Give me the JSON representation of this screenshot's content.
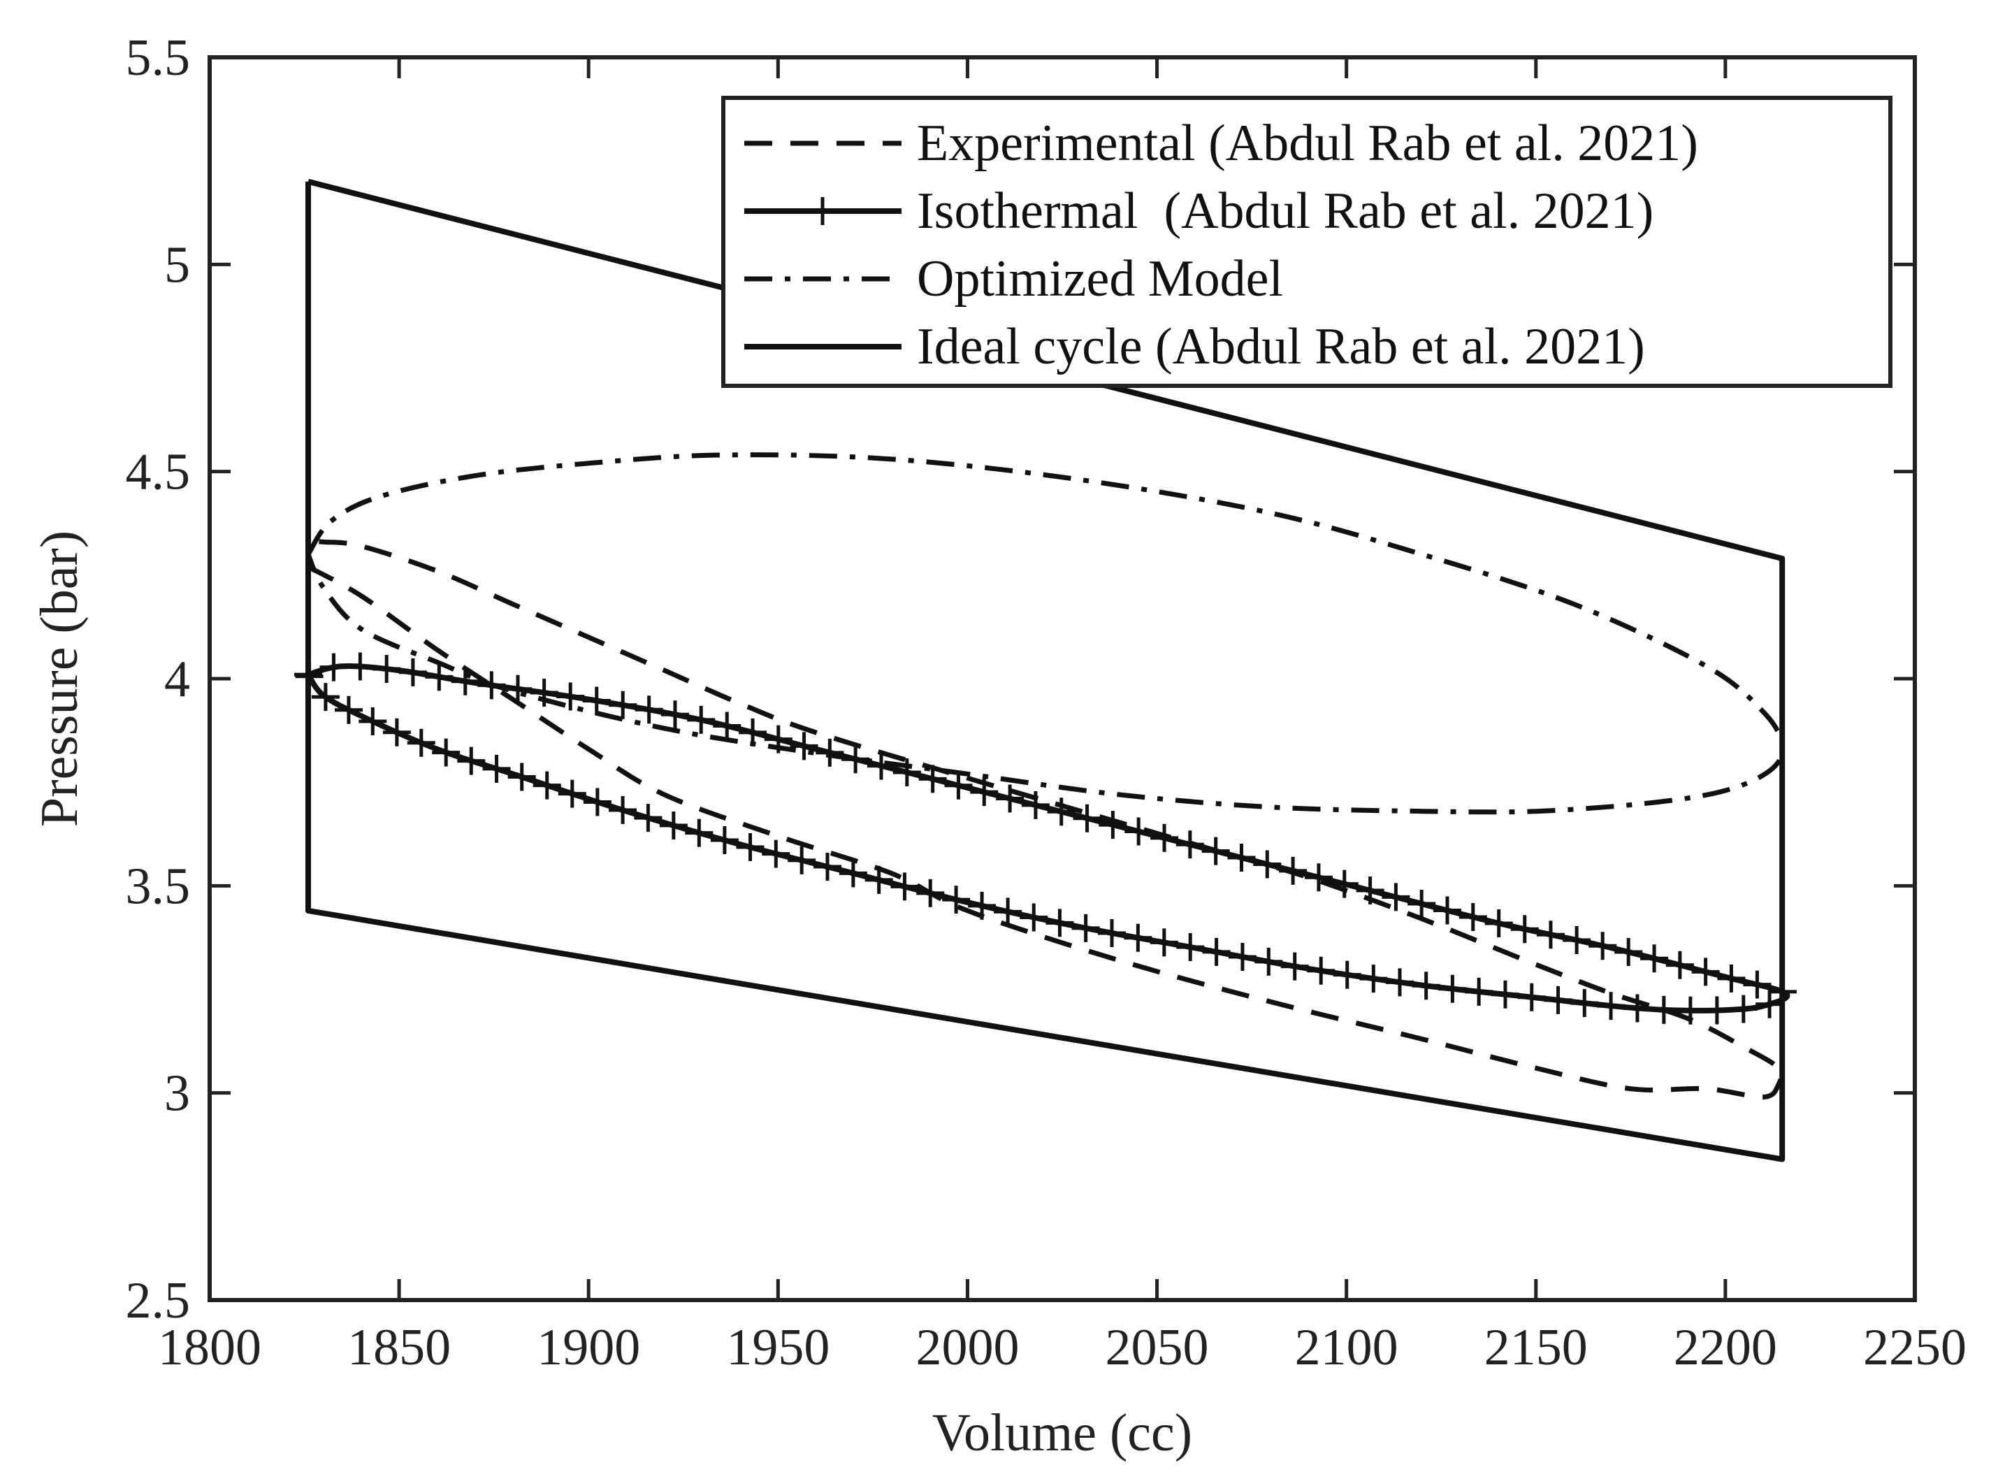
{
  "chart_data": {
    "type": "line",
    "title": "",
    "xlabel": "Volume (cc)",
    "ylabel": "Pressure (bar)",
    "xlim": [
      1800,
      2250
    ],
    "ylim": [
      2.5,
      5.5
    ],
    "xticks": [
      1800,
      1850,
      1900,
      1950,
      2000,
      2050,
      2100,
      2150,
      2200,
      2250
    ],
    "yticks": [
      2.5,
      3,
      3.5,
      4,
      4.5,
      5,
      5.5
    ],
    "xtick_labels": [
      "1800",
      "1850",
      "1900",
      "1950",
      "2000",
      "2050",
      "2100",
      "2150",
      "2200",
      "2250"
    ],
    "ytick_labels": [
      "2.5",
      "3",
      "3.5",
      "4",
      "4.5",
      "5",
      "5.5"
    ],
    "grid": false,
    "legend_position": "top-right",
    "series": [
      {
        "name": "Experimental (Abdul Rab et al. 2021)",
        "style": "dashed",
        "points": [
          [
            1826,
            4.27
          ],
          [
            1840,
            4.2
          ],
          [
            1860,
            4.07
          ],
          [
            1880,
            3.95
          ],
          [
            1900,
            3.83
          ],
          [
            1920,
            3.72
          ],
          [
            1950,
            3.62
          ],
          [
            1980,
            3.53
          ],
          [
            2000,
            3.44
          ],
          [
            2040,
            3.32
          ],
          [
            2080,
            3.22
          ],
          [
            2120,
            3.13
          ],
          [
            2150,
            3.06
          ],
          [
            2175,
            3.01
          ],
          [
            2195,
            3.01
          ],
          [
            2210,
            2.99
          ],
          [
            2214,
            3.02
          ],
          [
            2214,
            3.06
          ],
          [
            2205,
            3.11
          ],
          [
            2190,
            3.18
          ],
          [
            2170,
            3.24
          ],
          [
            2150,
            3.31
          ],
          [
            2120,
            3.42
          ],
          [
            2090,
            3.52
          ],
          [
            2060,
            3.6
          ],
          [
            2030,
            3.68
          ],
          [
            2000,
            3.76
          ],
          [
            1960,
            3.87
          ],
          [
            1940,
            3.94
          ],
          [
            1920,
            4.02
          ],
          [
            1900,
            4.1
          ],
          [
            1880,
            4.18
          ],
          [
            1860,
            4.26
          ],
          [
            1840,
            4.32
          ],
          [
            1830,
            4.33
          ],
          [
            1826,
            4.33
          ]
        ]
      },
      {
        "name": "Isothermal  (Abdul Rab et al. 2021)",
        "style": "solid-markers",
        "points": [
          [
            1826,
            4.01
          ],
          [
            1835,
            4.03
          ],
          [
            1850,
            4.02
          ],
          [
            1870,
            3.99
          ],
          [
            1900,
            3.95
          ],
          [
            1930,
            3.9
          ],
          [
            1960,
            3.83
          ],
          [
            1990,
            3.76
          ],
          [
            2020,
            3.69
          ],
          [
            2050,
            3.62
          ],
          [
            2080,
            3.55
          ],
          [
            2110,
            3.48
          ],
          [
            2140,
            3.41
          ],
          [
            2170,
            3.35
          ],
          [
            2200,
            3.28
          ],
          [
            2216,
            3.24
          ],
          [
            2210,
            3.21
          ],
          [
            2200,
            3.2
          ],
          [
            2185,
            3.2
          ],
          [
            2170,
            3.21
          ],
          [
            2150,
            3.23
          ],
          [
            2120,
            3.26
          ],
          [
            2090,
            3.3
          ],
          [
            2060,
            3.35
          ],
          [
            2030,
            3.4
          ],
          [
            2000,
            3.46
          ],
          [
            1970,
            3.53
          ],
          [
            1940,
            3.6
          ],
          [
            1910,
            3.68
          ],
          [
            1880,
            3.77
          ],
          [
            1860,
            3.83
          ],
          [
            1840,
            3.91
          ],
          [
            1830,
            3.96
          ],
          [
            1826,
            4.01
          ]
        ]
      },
      {
        "name": "Optimized Model",
        "style": "dash-dot",
        "points": [
          [
            1826,
            4.3
          ],
          [
            1832,
            4.38
          ],
          [
            1845,
            4.44
          ],
          [
            1870,
            4.49
          ],
          [
            1900,
            4.52
          ],
          [
            1935,
            4.54
          ],
          [
            1980,
            4.53
          ],
          [
            2030,
            4.48
          ],
          [
            2080,
            4.4
          ],
          [
            2120,
            4.3
          ],
          [
            2160,
            4.18
          ],
          [
            2195,
            4.03
          ],
          [
            2210,
            3.92
          ],
          [
            2215,
            3.84
          ],
          [
            2212,
            3.78
          ],
          [
            2200,
            3.73
          ],
          [
            2180,
            3.7
          ],
          [
            2150,
            3.68
          ],
          [
            2120,
            3.68
          ],
          [
            2080,
            3.69
          ],
          [
            2040,
            3.72
          ],
          [
            2000,
            3.77
          ],
          [
            1960,
            3.82
          ],
          [
            1920,
            3.88
          ],
          [
            1880,
            3.97
          ],
          [
            1860,
            4.04
          ],
          [
            1840,
            4.12
          ],
          [
            1830,
            4.22
          ],
          [
            1826,
            4.3
          ]
        ]
      },
      {
        "name": "Ideal cycle (Abdul Rab et al. 2021)",
        "style": "solid",
        "points": [
          [
            1826,
            5.2
          ],
          [
            2215,
            4.29
          ],
          [
            2215,
            2.84
          ],
          [
            1826,
            3.44
          ],
          [
            1826,
            5.2
          ]
        ]
      }
    ]
  }
}
